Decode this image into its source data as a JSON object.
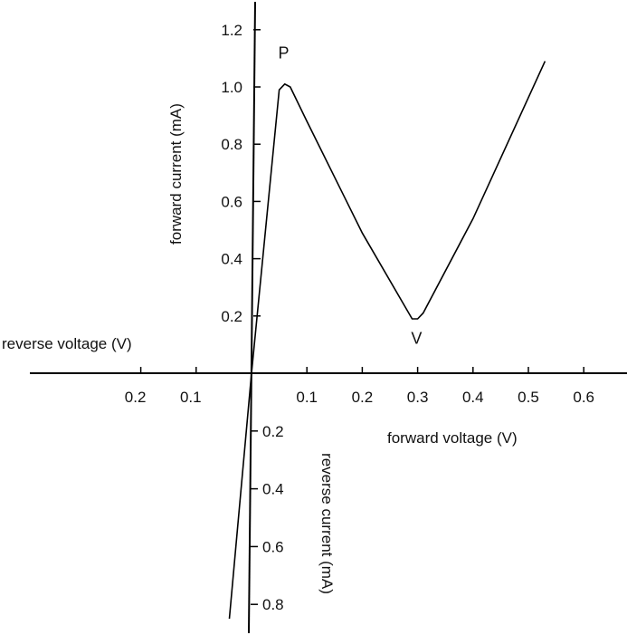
{
  "chart_data": {
    "type": "line",
    "title": "",
    "axes": {
      "forward_voltage_label": "forward voltage (V)",
      "reverse_voltage_label": "reverse voltage (V)",
      "forward_current_label": "forward current (mA)",
      "reverse_current_label": "reverse current (mA)",
      "forward_voltage_ticks": [
        0.1,
        0.2,
        0.3,
        0.4,
        0.5,
        0.6
      ],
      "reverse_voltage_ticks": [
        0.1,
        0.2
      ],
      "forward_current_ticks": [
        0.2,
        0.4,
        0.6,
        0.8,
        1.0,
        1.2
      ],
      "reverse_current_ticks": [
        0.2,
        0.4,
        0.6,
        0.8
      ],
      "x_range": [
        -0.4,
        0.65
      ],
      "y_range": [
        -0.9,
        1.3
      ]
    },
    "series": [
      {
        "name": "",
        "x": [
          -0.04,
          0.0,
          0.05,
          0.06,
          0.07,
          0.1,
          0.2,
          0.29,
          0.3,
          0.31,
          0.4,
          0.53
        ],
        "y": [
          -0.85,
          0.0,
          0.99,
          1.01,
          1.0,
          0.88,
          0.49,
          0.19,
          0.19,
          0.21,
          0.54,
          1.09
        ]
      }
    ],
    "annotations": [
      {
        "label": "P",
        "x": 0.058,
        "y": 1.1
      },
      {
        "label": "V",
        "x": 0.298,
        "y": 0.15
      }
    ],
    "grid": false
  }
}
